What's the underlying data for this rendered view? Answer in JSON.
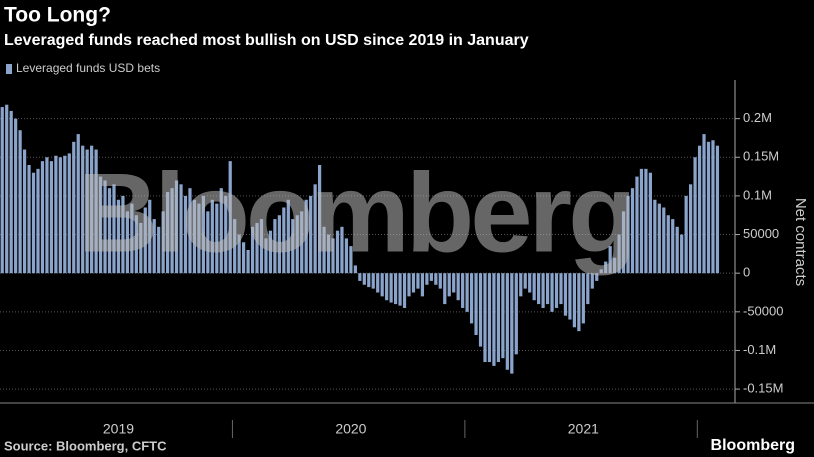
{
  "chart_data": {
    "type": "bar",
    "title": "Too Long?",
    "subtitle": "Leveraged funds reached most bullish on USD since 2019 in January",
    "source": "Source: Bloomberg, CFTC",
    "watermark": "Bloomberg",
    "brand": "Bloomberg",
    "y_label": "Net contracts",
    "categories": [
      null,
      null,
      null,
      null,
      null,
      null,
      null,
      null,
      null,
      null,
      null,
      null,
      null,
      null,
      null,
      null,
      null,
      null,
      null,
      null,
      null,
      null,
      null,
      null,
      null,
      null,
      "2019",
      null,
      null,
      null,
      null,
      null,
      null,
      null,
      null,
      null,
      null,
      null,
      null,
      null,
      null,
      null,
      null,
      null,
      null,
      null,
      null,
      null,
      null,
      null,
      null,
      null,
      null,
      null,
      null,
      null,
      null,
      null,
      null,
      null,
      null,
      null,
      null,
      null,
      null,
      null,
      null,
      null,
      null,
      null,
      null,
      null,
      null,
      null,
      null,
      null,
      null,
      null,
      "2020",
      null,
      null,
      null,
      null,
      null,
      null,
      null,
      null,
      null,
      null,
      null,
      null,
      null,
      null,
      null,
      null,
      null,
      null,
      null,
      null,
      null,
      null,
      null,
      null,
      null,
      null,
      null,
      null,
      null,
      null,
      null,
      null,
      null,
      null,
      null,
      null,
      null,
      null,
      null,
      null,
      null,
      null,
      null,
      null,
      null,
      null,
      null,
      null,
      null,
      null,
      null,
      "2021",
      null,
      null,
      null,
      null,
      null,
      null,
      null,
      null,
      null,
      null,
      null,
      null,
      null,
      null,
      null,
      null,
      null,
      null,
      null,
      null,
      null,
      null,
      null,
      null,
      null,
      null,
      null,
      null,
      null,
      null
    ],
    "series": [
      {
        "name": "Leveraged funds USD bets",
        "color": "#8ba4cc",
        "values": [
          215000,
          218000,
          210000,
          200000,
          185000,
          160000,
          140000,
          130000,
          135000,
          145000,
          150000,
          145000,
          152000,
          150000,
          152000,
          155000,
          170000,
          180000,
          165000,
          160000,
          165000,
          160000,
          125000,
          120000,
          110000,
          115000,
          95000,
          100000,
          80000,
          90000,
          75000,
          65000,
          85000,
          95000,
          70000,
          60000,
          80000,
          105000,
          110000,
          120000,
          115000,
          100000,
          110000,
          95000,
          90000,
          100000,
          80000,
          95000,
          90000,
          110000,
          100000,
          145000,
          70000,
          50000,
          40000,
          30000,
          60000,
          65000,
          70000,
          45000,
          55000,
          70000,
          75000,
          85000,
          95000,
          70000,
          75000,
          80000,
          95000,
          100000,
          115000,
          140000,
          60000,
          50000,
          45000,
          55000,
          60000,
          45000,
          35000,
          10000,
          -10000,
          -15000,
          -18000,
          -20000,
          -25000,
          -30000,
          -35000,
          -38000,
          -40000,
          -42000,
          -45000,
          -30000,
          -25000,
          -20000,
          -30000,
          -15000,
          -10000,
          -15000,
          -20000,
          -40000,
          -30000,
          -25000,
          -35000,
          -45000,
          -50000,
          -65000,
          -80000,
          -95000,
          -115000,
          -115000,
          -120000,
          -115000,
          -110000,
          -125000,
          -130000,
          -105000,
          -30000,
          -20000,
          -25000,
          -35000,
          -40000,
          -45000,
          -40000,
          -50000,
          -45000,
          -40000,
          -55000,
          -60000,
          -70000,
          -75000,
          -65000,
          -40000,
          -20000,
          -10000,
          5000,
          15000,
          35000,
          20000,
          50000,
          80000,
          100000,
          110000,
          125000,
          135000,
          135000,
          130000,
          95000,
          90000,
          85000,
          75000,
          70000,
          60000,
          50000,
          100000,
          115000,
          150000,
          165000,
          180000,
          170000,
          172000,
          165000
        ]
      }
    ],
    "ylim": [
      -168000,
      250000
    ],
    "yticks": [
      {
        "value": 200000,
        "label": "0.2M"
      },
      {
        "value": 150000,
        "label": "0.15M"
      },
      {
        "value": 100000,
        "label": "0.1M"
      },
      50000,
      0,
      -50000,
      {
        "value": -100000,
        "label": "-0.1M"
      },
      {
        "value": -150000,
        "label": "-0.15M"
      }
    ],
    "grid": true
  }
}
